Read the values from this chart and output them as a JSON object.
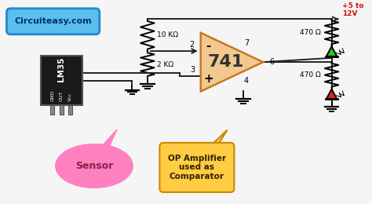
{
  "bg_color": "#f5f5f5",
  "website_label": "Circuiteasy.com",
  "website_bubble_color_top": "#7dd4f8",
  "website_bubble_color_bot": "#3aa0e8",
  "sensor_label": "Sensor",
  "sensor_bubble_color": "#ff80c0",
  "opamp_label": "OP Amplifier\nused as\nComparator",
  "opamp_bubble_color": "#ffcc44",
  "opamp_bubble_outline": "#cc8800",
  "ic_label": "741",
  "ic_body_color": "#f2c890",
  "ic_edge_color": "#c87820",
  "voltage_label": "+5 to\n12V",
  "r1_label": "10 KΩ",
  "r2_label": "2 KΩ",
  "r3_label": "470 Ω",
  "r4_label": "470 Ω",
  "lm35_label": "LM35",
  "lm35_pins": [
    "GND",
    "OUT",
    "Vcc"
  ],
  "green_led_color": "#22cc22",
  "red_led_color": "#dd2222",
  "wire_color": "#222222",
  "pin2_label": "2",
  "pin3_label": "3",
  "pin4_label": "4",
  "pin6_label": "6",
  "pin7_label": "7",
  "neg_label": "-",
  "pos_label": "+"
}
